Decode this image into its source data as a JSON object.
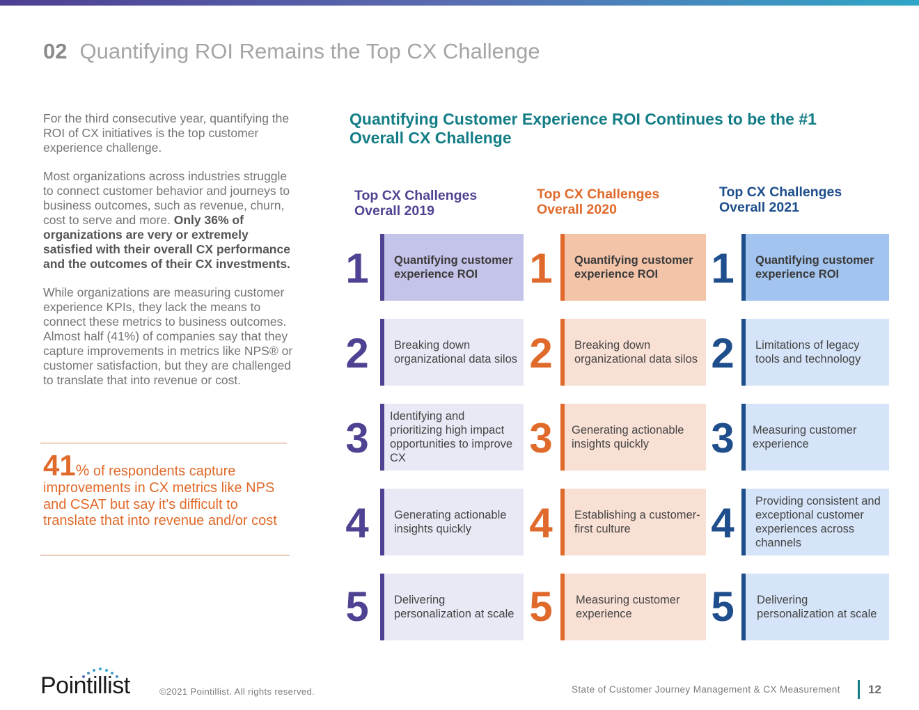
{
  "header": {
    "section_number": "02",
    "title": "Quantifying ROI Remains the Top CX Challenge"
  },
  "intro": {
    "p1": "For the third consecutive year, quantifying the ROI of CX initiatives is the top customer experience challenge.",
    "p2_plain": "Most organizations across industries struggle to connect customer behavior and journeys to business outcomes, such as revenue, churn, cost to serve and more.",
    "p2_bold": "Only 36% of organizations are very or extremely satisfied with their overall CX performance and the outcomes of their CX investments.",
    "p3": "While organizations are measuring customer experience KPIs, they lack the means to connect these metrics to business outcomes. Almost half (41%) of companies say that they capture improvements in metrics like NPS® or customer satisfaction, but they are challenged to translate that into revenue or cost."
  },
  "callout": {
    "number": "41",
    "percent": "%",
    "text": "of respondents capture improvements in CX metrics like NPS and CSAT but say it’s difficult to translate that into revenue and/or cost"
  },
  "chart_data": {
    "type": "table",
    "title": "Quantifying Customer Experience ROI Continues to be the #1 Overall CX Challenge",
    "columns": [
      {
        "heading_line1": "Top CX Challenges",
        "heading_line2": "Overall 2019",
        "color": "#4e4392",
        "items": [
          {
            "rank": "1",
            "label": "Quantifying customer experience ROI"
          },
          {
            "rank": "2",
            "label": "Breaking down organizational data silos"
          },
          {
            "rank": "3",
            "label": "Identifying and prioritizing high impact opportunities to improve CX"
          },
          {
            "rank": "4",
            "label": "Generating actionable insights quickly"
          },
          {
            "rank": "5",
            "label": "Delivering personalization at scale"
          }
        ]
      },
      {
        "heading_line1": "Top CX Challenges",
        "heading_line2": "Overall 2020",
        "color": "#e06a2b",
        "items": [
          {
            "rank": "1",
            "label": "Quantifying customer experience ROI"
          },
          {
            "rank": "2",
            "label": "Breaking down organizational data silos"
          },
          {
            "rank": "3",
            "label": "Generating actionable insights quickly"
          },
          {
            "rank": "4",
            "label": "Establishing a customer-first culture"
          },
          {
            "rank": "5",
            "label": "Measuring customer experience"
          }
        ]
      },
      {
        "heading_line1": "Top CX Challenges",
        "heading_line2": "Overall 2021",
        "color": "#1e4e8c",
        "items": [
          {
            "rank": "1",
            "label": "Quantifying customer experience ROI"
          },
          {
            "rank": "2",
            "label": "Limitations of legacy tools and technology"
          },
          {
            "rank": "3",
            "label": "Measuring customer experience"
          },
          {
            "rank": "4",
            "label": "Providing consistent and exceptional customer experiences across channels"
          },
          {
            "rank": "5",
            "label": "Delivering personalization at scale"
          }
        ]
      }
    ]
  },
  "footer": {
    "logo_text": "Pointillist",
    "copyright": "©2021 Pointillist. All rights reserved.",
    "report_title": "State of Customer Journey Management & CX Measurement",
    "page_number": "12"
  }
}
